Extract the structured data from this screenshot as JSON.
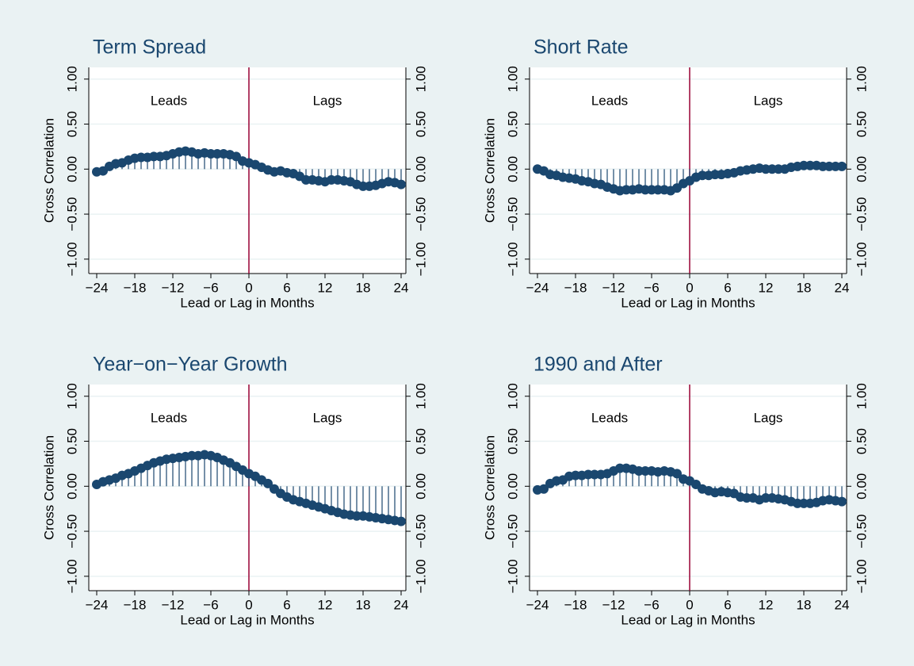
{
  "chart_data": [
    {
      "type": "spike",
      "title": "Term Spread",
      "x_label": "Lead or Lag in Months",
      "y_label": "Cross Correlation",
      "annotations": [
        "Leads",
        "Lags"
      ],
      "reference_line": 0,
      "color": "#1a476f",
      "reference_color": "#990033",
      "grid": true,
      "x": [
        -24,
        -23,
        -22,
        -21,
        -20,
        -19,
        -18,
        -17,
        -16,
        -15,
        -14,
        -13,
        -12,
        -11,
        -10,
        -9,
        -8,
        -7,
        -6,
        -5,
        -4,
        -3,
        -2,
        -1,
        0,
        1,
        2,
        3,
        4,
        5,
        6,
        7,
        8,
        9,
        10,
        11,
        12,
        13,
        14,
        15,
        16,
        17,
        18,
        19,
        20,
        21,
        22,
        23,
        24
      ],
      "values": [
        -0.03,
        -0.02,
        0.03,
        0.06,
        0.07,
        0.1,
        0.12,
        0.13,
        0.13,
        0.14,
        0.14,
        0.15,
        0.17,
        0.19,
        0.2,
        0.19,
        0.17,
        0.18,
        0.17,
        0.17,
        0.17,
        0.16,
        0.14,
        0.09,
        0.07,
        0.05,
        0.02,
        -0.01,
        -0.03,
        -0.02,
        -0.04,
        -0.05,
        -0.08,
        -0.12,
        -0.12,
        -0.13,
        -0.14,
        -0.12,
        -0.12,
        -0.13,
        -0.14,
        -0.17,
        -0.19,
        -0.19,
        -0.18,
        -0.16,
        -0.14,
        -0.15,
        -0.17
      ],
      "xlim": [
        -25.25,
        24.75
      ],
      "ylim": [
        -1.16,
        1.13
      ],
      "xticks": [
        {
          "value": -24,
          "label": "−24"
        },
        {
          "value": -18,
          "label": "−18"
        },
        {
          "value": -12,
          "label": "−12"
        },
        {
          "value": -6,
          "label": "−6"
        },
        0,
        6,
        12,
        18,
        24
      ],
      "yticks": [
        {
          "value": -1,
          "label": "−1.00"
        },
        {
          "value": -0.5,
          "label": "−0.50"
        },
        {
          "value": 0,
          "label": "0.00"
        },
        {
          "value": 0.5,
          "label": "0.50"
        },
        {
          "value": 1,
          "label": "1.00"
        }
      ]
    },
    {
      "type": "spike",
      "title": "Short Rate",
      "x_label": "Lead or Lag in Months",
      "y_label": "Cross Correlation",
      "annotations": [
        "Leads",
        "Lags"
      ],
      "reference_line": 0,
      "color": "#1a476f",
      "reference_color": "#990033",
      "grid": true,
      "x": [
        -24,
        -23,
        -22,
        -21,
        -20,
        -19,
        -18,
        -17,
        -16,
        -15,
        -14,
        -13,
        -12,
        -11,
        -10,
        -9,
        -8,
        -7,
        -6,
        -5,
        -4,
        -3,
        -2,
        -1,
        0,
        1,
        2,
        3,
        4,
        5,
        6,
        7,
        8,
        9,
        10,
        11,
        12,
        13,
        14,
        15,
        16,
        17,
        18,
        19,
        20,
        21,
        22,
        23,
        24
      ],
      "values": [
        0.0,
        -0.02,
        -0.06,
        -0.07,
        -0.09,
        -0.1,
        -0.11,
        -0.13,
        -0.14,
        -0.16,
        -0.17,
        -0.2,
        -0.22,
        -0.24,
        -0.23,
        -0.23,
        -0.22,
        -0.23,
        -0.23,
        -0.23,
        -0.23,
        -0.24,
        -0.21,
        -0.16,
        -0.13,
        -0.09,
        -0.07,
        -0.07,
        -0.06,
        -0.06,
        -0.05,
        -0.04,
        -0.02,
        -0.01,
        0.0,
        0.01,
        0.0,
        0.0,
        0.0,
        0.0,
        0.02,
        0.03,
        0.04,
        0.04,
        0.04,
        0.03,
        0.03,
        0.03,
        0.03
      ],
      "xlim": [
        -25.25,
        24.75
      ],
      "ylim": [
        -1.16,
        1.13
      ],
      "xticks": [
        {
          "value": -24,
          "label": "−24"
        },
        {
          "value": -18,
          "label": "−18"
        },
        {
          "value": -12,
          "label": "−12"
        },
        {
          "value": -6,
          "label": "−6"
        },
        0,
        6,
        12,
        18,
        24
      ],
      "yticks": [
        {
          "value": -1,
          "label": "−1.00"
        },
        {
          "value": -0.5,
          "label": "−0.50"
        },
        {
          "value": 0,
          "label": "0.00"
        },
        {
          "value": 0.5,
          "label": "0.50"
        },
        {
          "value": 1,
          "label": "1.00"
        }
      ]
    },
    {
      "type": "spike",
      "title": "Year−on−Year Growth",
      "x_label": "Lead or Lag in Months",
      "y_label": "Cross Correlation",
      "annotations": [
        "Leads",
        "Lags"
      ],
      "reference_line": 0,
      "color": "#1a476f",
      "reference_color": "#990033",
      "grid": true,
      "x": [
        -24,
        -23,
        -22,
        -21,
        -20,
        -19,
        -18,
        -17,
        -16,
        -15,
        -14,
        -13,
        -12,
        -11,
        -10,
        -9,
        -8,
        -7,
        -6,
        -5,
        -4,
        -3,
        -2,
        -1,
        0,
        1,
        2,
        3,
        4,
        5,
        6,
        7,
        8,
        9,
        10,
        11,
        12,
        13,
        14,
        15,
        16,
        17,
        18,
        19,
        20,
        21,
        22,
        23,
        24
      ],
      "values": [
        0.02,
        0.05,
        0.07,
        0.09,
        0.12,
        0.14,
        0.17,
        0.2,
        0.23,
        0.26,
        0.28,
        0.3,
        0.31,
        0.32,
        0.33,
        0.34,
        0.34,
        0.35,
        0.34,
        0.32,
        0.29,
        0.26,
        0.22,
        0.18,
        0.14,
        0.11,
        0.07,
        0.03,
        -0.03,
        -0.08,
        -0.12,
        -0.15,
        -0.17,
        -0.19,
        -0.21,
        -0.23,
        -0.25,
        -0.27,
        -0.29,
        -0.31,
        -0.32,
        -0.33,
        -0.33,
        -0.34,
        -0.35,
        -0.36,
        -0.37,
        -0.38,
        -0.39
      ],
      "xlim": [
        -25.25,
        24.75
      ],
      "ylim": [
        -1.16,
        1.13
      ],
      "xticks": [
        {
          "value": -24,
          "label": "−24"
        },
        {
          "value": -18,
          "label": "−18"
        },
        {
          "value": -12,
          "label": "−12"
        },
        {
          "value": -6,
          "label": "−6"
        },
        0,
        6,
        12,
        18,
        24
      ],
      "yticks": [
        {
          "value": -1,
          "label": "−1.00"
        },
        {
          "value": -0.5,
          "label": "−0.50"
        },
        {
          "value": 0,
          "label": "0.00"
        },
        {
          "value": 0.5,
          "label": "0.50"
        },
        {
          "value": 1,
          "label": "1.00"
        }
      ]
    },
    {
      "type": "spike",
      "title": "1990 and After",
      "x_label": "Lead or Lag in Months",
      "y_label": "Cross Correlation",
      "annotations": [
        "Leads",
        "Lags"
      ],
      "reference_line": 0,
      "color": "#1a476f",
      "reference_color": "#990033",
      "grid": true,
      "x": [
        -24,
        -23,
        -22,
        -21,
        -20,
        -19,
        -18,
        -17,
        -16,
        -15,
        -14,
        -13,
        -12,
        -11,
        -10,
        -9,
        -8,
        -7,
        -6,
        -5,
        -4,
        -3,
        -2,
        -1,
        0,
        1,
        2,
        3,
        4,
        5,
        6,
        7,
        8,
        9,
        10,
        11,
        12,
        13,
        14,
        15,
        16,
        17,
        18,
        19,
        20,
        21,
        22,
        23,
        24
      ],
      "values": [
        -0.04,
        -0.03,
        0.03,
        0.06,
        0.07,
        0.11,
        0.12,
        0.12,
        0.13,
        0.13,
        0.13,
        0.14,
        0.17,
        0.2,
        0.2,
        0.19,
        0.17,
        0.17,
        0.17,
        0.16,
        0.17,
        0.16,
        0.14,
        0.08,
        0.06,
        0.02,
        -0.03,
        -0.05,
        -0.07,
        -0.06,
        -0.07,
        -0.08,
        -0.12,
        -0.13,
        -0.13,
        -0.15,
        -0.13,
        -0.13,
        -0.14,
        -0.15,
        -0.17,
        -0.19,
        -0.19,
        -0.19,
        -0.18,
        -0.16,
        -0.15,
        -0.16,
        -0.17
      ],
      "xlim": [
        -25.25,
        24.75
      ],
      "ylim": [
        -1.16,
        1.13
      ],
      "xticks": [
        {
          "value": -24,
          "label": "−24"
        },
        {
          "value": -18,
          "label": "−18"
        },
        {
          "value": -12,
          "label": "−12"
        },
        {
          "value": -6,
          "label": "−6"
        },
        0,
        6,
        12,
        18,
        24
      ],
      "yticks": [
        {
          "value": -1,
          "label": "−1.00"
        },
        {
          "value": -0.5,
          "label": "−0.50"
        },
        {
          "value": 0,
          "label": "0.00"
        },
        {
          "value": 0.5,
          "label": "0.50"
        },
        {
          "value": 1,
          "label": "1.00"
        }
      ]
    }
  ]
}
